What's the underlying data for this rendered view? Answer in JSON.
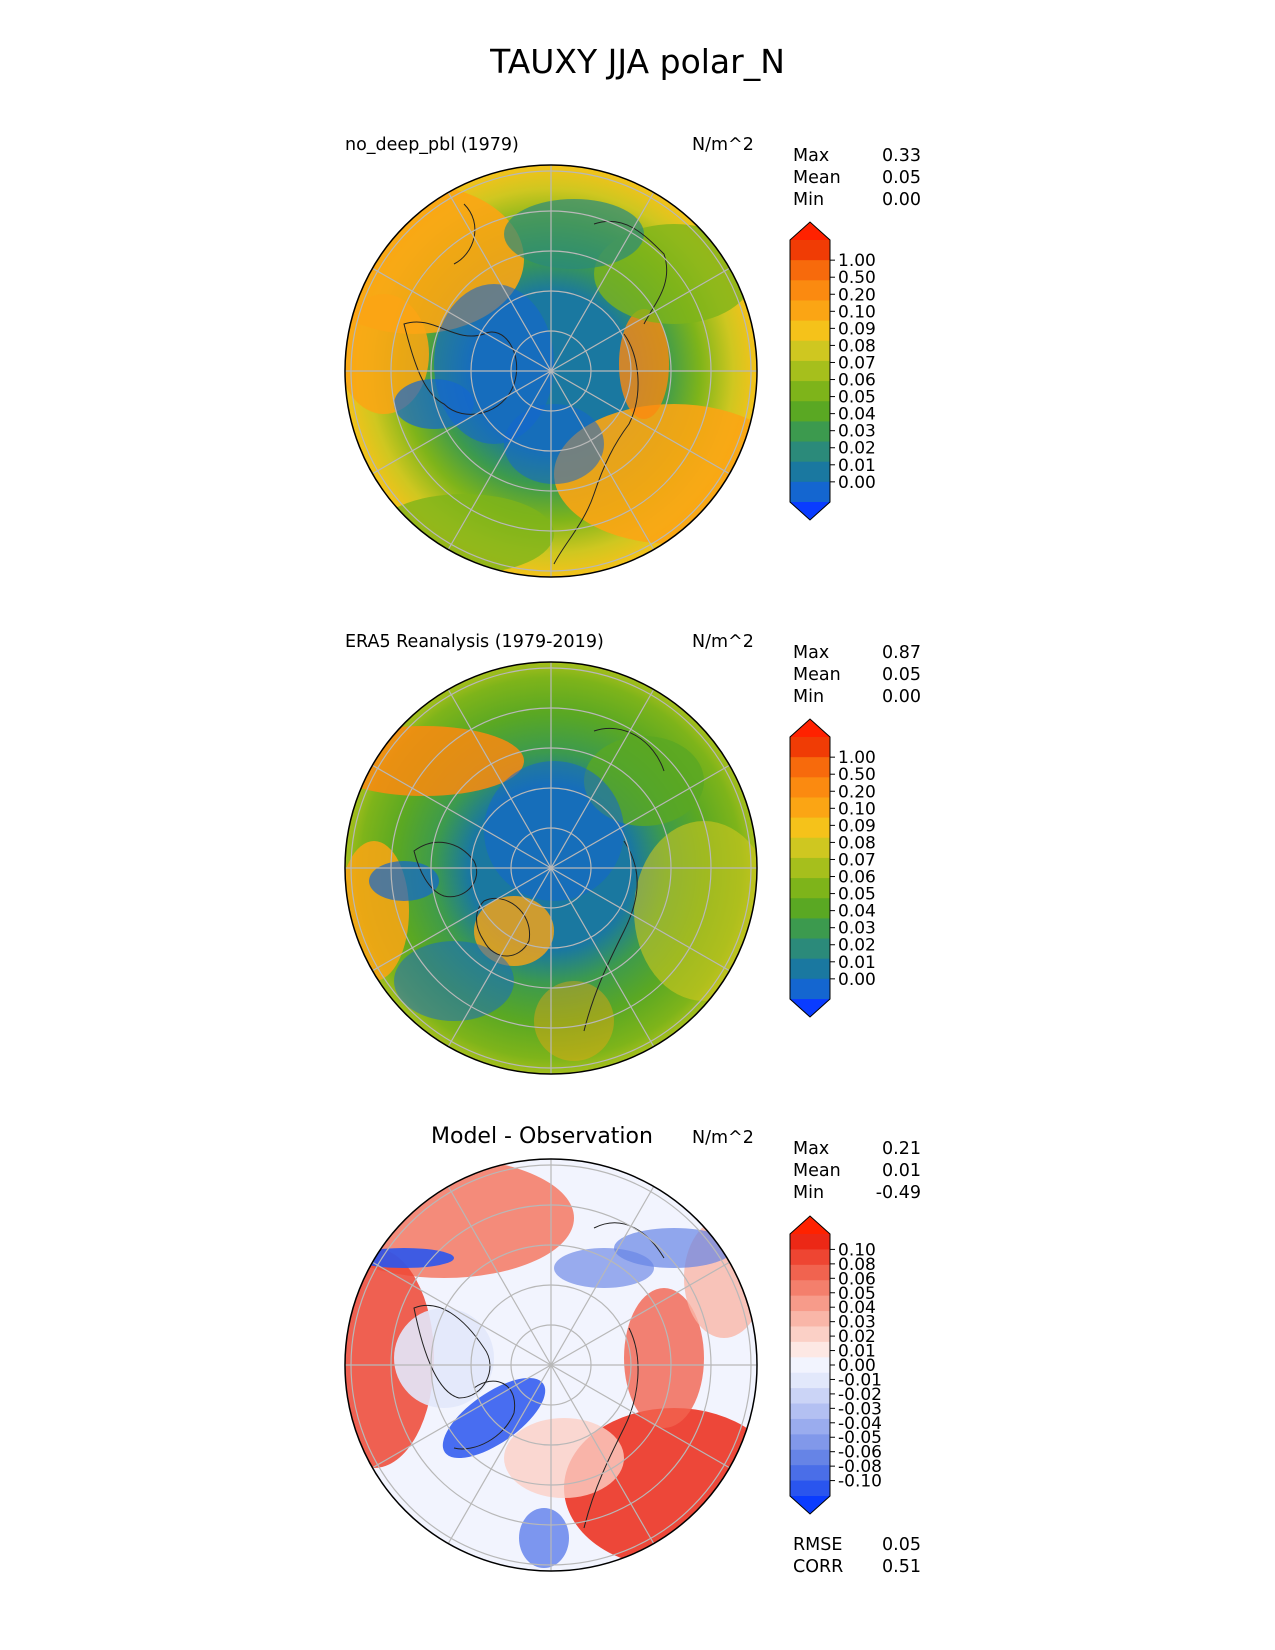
{
  "figure": {
    "title": "TAUXY JJA polar_N"
  },
  "panels": [
    {
      "title": "no_deep_pbl (1979)",
      "units": "N/m^2",
      "stats": {
        "max_label": "Max",
        "max": "0.33",
        "mean_label": "Mean",
        "mean": "0.05",
        "min_label": "Min",
        "min": "0.00"
      },
      "colorbar": {
        "ticks": [
          "1.00",
          "0.50",
          "0.20",
          "0.10",
          "0.09",
          "0.08",
          "0.07",
          "0.06",
          "0.05",
          "0.04",
          "0.03",
          "0.02",
          "0.01",
          "0.00"
        ]
      }
    },
    {
      "title": "ERA5 Reanalysis (1979-2019)",
      "units": "N/m^2",
      "stats": {
        "max_label": "Max",
        "max": "0.87",
        "mean_label": "Mean",
        "mean": "0.05",
        "min_label": "Min",
        "min": "0.00"
      },
      "colorbar": {
        "ticks": [
          "1.00",
          "0.50",
          "0.20",
          "0.10",
          "0.09",
          "0.08",
          "0.07",
          "0.06",
          "0.05",
          "0.04",
          "0.03",
          "0.02",
          "0.01",
          "0.00"
        ]
      }
    },
    {
      "title": "Model - Observation",
      "units": "N/m^2",
      "stats": {
        "max_label": "Max",
        "max": "0.21",
        "mean_label": "Mean",
        "mean": "0.01",
        "min_label": "Min",
        "min": "-0.49"
      },
      "colorbar": {
        "ticks": [
          "0.10",
          "0.08",
          "0.06",
          "0.05",
          "0.04",
          "0.03",
          "0.02",
          "0.01",
          "0.00",
          "-0.01",
          "-0.02",
          "-0.03",
          "-0.04",
          "-0.05",
          "-0.06",
          "-0.08",
          "-0.10"
        ]
      },
      "metrics": {
        "rmse_label": "RMSE",
        "rmse": "0.05",
        "corr_label": "CORR",
        "corr": "0.51"
      }
    }
  ],
  "colors": {
    "field_scale": [
      "#0a3cff",
      "#1466d0",
      "#1a78a0",
      "#2b8a7a",
      "#3c9a4e",
      "#5aa823",
      "#7eb41a",
      "#a6bf1c",
      "#cfc720",
      "#f5c21a",
      "#fba514",
      "#fb8a10",
      "#f76a0c",
      "#f03c05",
      "#ff2200"
    ],
    "diff_scale": [
      "#0a3cff",
      "#2a55ee",
      "#4a6ee8",
      "#6684e6",
      "#8198ea",
      "#9aacee",
      "#b3c0f2",
      "#cbd4f6",
      "#e2e8fb",
      "#f2f4fe",
      "#fde8e4",
      "#fbd0c6",
      "#f9b6a8",
      "#f79b8a",
      "#f47f6c",
      "#f1634f",
      "#ee4532",
      "#ec2816",
      "#ff2200"
    ]
  },
  "chart_data": [
    {
      "type": "heatmap",
      "projection": "north polar stereographic",
      "title": "no_deep_pbl (1979)",
      "units": "N/m^2",
      "levels": [
        0.0,
        0.01,
        0.02,
        0.03,
        0.04,
        0.05,
        0.06,
        0.07,
        0.08,
        0.09,
        0.1,
        0.2,
        0.5,
        1.0
      ],
      "max": 0.33,
      "mean": 0.05,
      "min": 0.0
    },
    {
      "type": "heatmap",
      "projection": "north polar stereographic",
      "title": "ERA5 Reanalysis (1979-2019)",
      "units": "N/m^2",
      "levels": [
        0.0,
        0.01,
        0.02,
        0.03,
        0.04,
        0.05,
        0.06,
        0.07,
        0.08,
        0.09,
        0.1,
        0.2,
        0.5,
        1.0
      ],
      "max": 0.87,
      "mean": 0.05,
      "min": 0.0
    },
    {
      "type": "heatmap",
      "projection": "north polar stereographic",
      "title": "Model - Observation",
      "units": "N/m^2",
      "levels": [
        -0.1,
        -0.08,
        -0.06,
        -0.05,
        -0.04,
        -0.03,
        -0.02,
        -0.01,
        0.0,
        0.01,
        0.02,
        0.03,
        0.04,
        0.05,
        0.06,
        0.08,
        0.1
      ],
      "max": 0.21,
      "mean": 0.01,
      "min": -0.49,
      "rmse": 0.05,
      "corr": 0.51
    }
  ]
}
